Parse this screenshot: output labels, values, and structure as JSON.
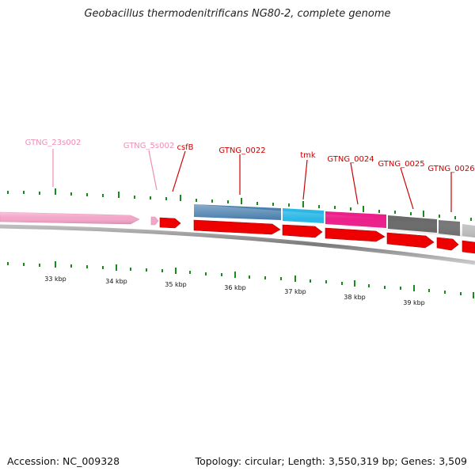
{
  "title": "Geobacillus thermodenitrificans NG80-2, complete genome",
  "footer": {
    "accession": "Accession: NC_009328",
    "summary": "Topology: circular; Length: 3,550,319 bp; Genes: 3,509"
  },
  "scale": {
    "ticks": [
      {
        "label": "33 kbp"
      },
      {
        "label": "34 kbp"
      },
      {
        "label": "35 kbp"
      },
      {
        "label": "36 kbp"
      },
      {
        "label": "37 kbp"
      },
      {
        "label": "38 kbp"
      },
      {
        "label": "39 kbp"
      }
    ]
  },
  "genes": [
    {
      "id": "g23s",
      "label": "GTNG_23s002",
      "color": "#f3a6c8",
      "label_color": "#ec8fb5",
      "type": "rRNA"
    },
    {
      "id": "g5s",
      "label": "GTNG_5s002",
      "color": "#f3a6c8",
      "label_color": "#ec8fb5",
      "type": "rRNA"
    },
    {
      "id": "csfB",
      "label": "csfB",
      "color": "#ee0000",
      "label_color": "#cc0000",
      "type": "CDS"
    },
    {
      "id": "g0022",
      "label": "GTNG_0022",
      "color": "#4a7fae",
      "label_color": "#cc0000",
      "type": "CDS"
    },
    {
      "id": "tmk",
      "label": "tmk",
      "color": "#2bb8e6",
      "label_color": "#cc0000",
      "type": "CDS"
    },
    {
      "id": "g0024",
      "label": "GTNG_0024",
      "color": "#ec1f8a",
      "label_color": "#cc0000",
      "type": "CDS"
    },
    {
      "id": "g0025",
      "label": "GTNG_0025",
      "color": "#6a6a6a",
      "label_color": "#cc0000",
      "type": "CDS"
    },
    {
      "id": "g0026",
      "label": "GTNG_0026",
      "color": "#777777",
      "label_color": "#cc0000",
      "type": "CDS"
    }
  ],
  "colors": {
    "backbone": "#8a8a8a",
    "tick": "#1a8a1a",
    "cds_red": "#ee0000",
    "light_gray_feature": "#c8c8c8"
  }
}
